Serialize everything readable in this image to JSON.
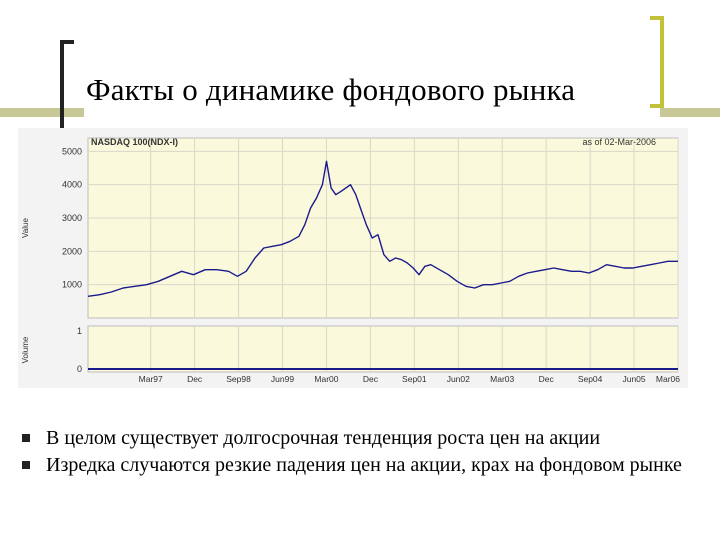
{
  "slide": {
    "title": "Факты о динамике фондового рынка",
    "accent_color": "#c8c896",
    "bracket_color_left": "#222222",
    "bracket_color_right": "#c2c23a"
  },
  "bullets": [
    {
      "text": "В целом существует долгосрочная тенденция роста цен на акции"
    },
    {
      "text": "Изредка случаются резкие падения цен на акции, крах на фондовом рынке"
    }
  ],
  "bullet_marker_color": "#222222",
  "chart_data": {
    "type": "line",
    "title": "NASDAQ 100(NDX-I)",
    "subtitle": "as of 02-Mar-2006",
    "ylabel": "Value",
    "volume_label": "Volume",
    "ylim": [
      0,
      5400
    ],
    "yticks": [
      1000,
      2000,
      3000,
      4000,
      5000
    ],
    "volume_ticks": [
      0,
      1
    ],
    "x_tick_labels": [
      "Mar97",
      "Dec",
      "Sep98",
      "Jun99",
      "Mar00",
      "Dec",
      "Sep01",
      "Jun02",
      "Mar03",
      "Dec",
      "Sep04",
      "Jun05",
      "Mar06"
    ],
    "x_tick_years": [
      1997.17,
      1997.92,
      1998.67,
      1999.42,
      2000.17,
      2000.92,
      2001.67,
      2002.42,
      2003.17,
      2003.92,
      2004.67,
      2005.42,
      2006.17
    ],
    "xlim": [
      1996.1,
      2006.17
    ],
    "grid": true,
    "background": "#fbf9dc",
    "line_color": "#1a1a8c",
    "series": [
      {
        "x": [
          1996.1,
          1996.3,
          1996.5,
          1996.7,
          1996.9,
          1997.1,
          1997.3,
          1997.5,
          1997.7,
          1997.9,
          1998.1,
          1998.3,
          1998.5,
          1998.65,
          1998.8,
          1998.95,
          1999.1,
          1999.25,
          1999.4,
          1999.55,
          1999.7,
          1999.8,
          1999.9,
          2000.0,
          2000.1,
          2000.17,
          2000.25,
          2000.33,
          2000.42,
          2000.5,
          2000.58,
          2000.67,
          2000.75,
          2000.85,
          2000.95,
          2001.05,
          2001.15,
          2001.25,
          2001.35,
          2001.45,
          2001.55,
          2001.65,
          2001.75,
          2001.85,
          2001.95,
          2002.1,
          2002.25,
          2002.4,
          2002.55,
          2002.7,
          2002.85,
          2003.0,
          2003.15,
          2003.3,
          2003.45,
          2003.6,
          2003.75,
          2003.9,
          2004.05,
          2004.2,
          2004.35,
          2004.5,
          2004.65,
          2004.8,
          2004.95,
          2005.1,
          2005.25,
          2005.4,
          2005.55,
          2005.7,
          2005.85,
          2006.0,
          2006.17
        ],
        "values": [
          650,
          700,
          780,
          900,
          950,
          1000,
          1100,
          1250,
          1400,
          1300,
          1450,
          1450,
          1400,
          1250,
          1400,
          1800,
          2100,
          2150,
          2200,
          2300,
          2450,
          2800,
          3300,
          3600,
          4000,
          4700,
          3900,
          3700,
          3800,
          3900,
          4000,
          3700,
          3300,
          2800,
          2400,
          2500,
          1900,
          1700,
          1800,
          1750,
          1650,
          1500,
          1300,
          1550,
          1600,
          1450,
          1300,
          1100,
          950,
          900,
          1000,
          1000,
          1050,
          1100,
          1250,
          1350,
          1400,
          1450,
          1500,
          1450,
          1400,
          1400,
          1350,
          1450,
          1600,
          1550,
          1500,
          1500,
          1550,
          1600,
          1650,
          1700,
          1700
        ]
      }
    ]
  }
}
